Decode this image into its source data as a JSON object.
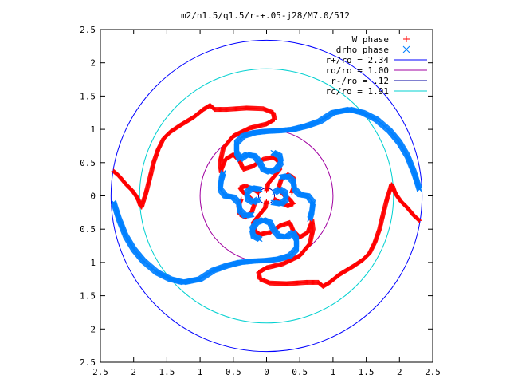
{
  "chart_data": {
    "type": "scatter",
    "title": "m2/n1.5/q1.5/r-+.05-j28/M7.0/512",
    "xlabel": "",
    "ylabel": "",
    "xlim": [
      -2.5,
      2.5
    ],
    "ylim": [
      -2.5,
      2.5
    ],
    "x_ticks": [
      {
        "value": -2.5,
        "label": "2.5"
      },
      {
        "value": -2,
        "label": "2"
      },
      {
        "value": -1.5,
        "label": "1.5"
      },
      {
        "value": -1,
        "label": "1"
      },
      {
        "value": -0.5,
        "label": "0.5"
      },
      {
        "value": 0,
        "label": "0"
      },
      {
        "value": 0.5,
        "label": "0.5"
      },
      {
        "value": 1,
        "label": "1"
      },
      {
        "value": 1.5,
        "label": "1.5"
      },
      {
        "value": 2,
        "label": "2"
      },
      {
        "value": 2.5,
        "label": "2.5"
      }
    ],
    "y_ticks": [
      {
        "value": 2.5,
        "label": "2.5"
      },
      {
        "value": 2,
        "label": "2"
      },
      {
        "value": 1.5,
        "label": "1.5"
      },
      {
        "value": 1,
        "label": "1"
      },
      {
        "value": 0.5,
        "label": "0.5"
      },
      {
        "value": 0,
        "label": "0"
      },
      {
        "value": -0.5,
        "label": "0.5"
      },
      {
        "value": -1,
        "label": "1"
      },
      {
        "value": -1.5,
        "label": "1.5"
      },
      {
        "value": -2,
        "label": "2"
      },
      {
        "value": -2.5,
        "label": "2.5"
      }
    ],
    "grid": false,
    "legend_position": "top-right",
    "series": [
      {
        "name": "W phase",
        "marker": "plus",
        "color": "#ff0000",
        "arms": [
          [
            [
              2.3,
              -0.37
            ],
            [
              2.22,
              -0.3
            ],
            [
              2.12,
              -0.18
            ],
            [
              2.02,
              -0.08
            ],
            [
              1.95,
              0.02
            ],
            [
              1.92,
              0.08
            ],
            [
              1.9,
              0.14
            ],
            [
              1.88,
              0.17
            ],
            [
              1.86,
              0.1
            ],
            [
              1.82,
              -0.02
            ],
            [
              1.76,
              -0.25
            ],
            [
              1.7,
              -0.5
            ],
            [
              1.63,
              -0.7
            ],
            [
              1.55,
              -0.86
            ],
            [
              1.45,
              -0.96
            ],
            [
              1.3,
              -1.06
            ],
            [
              1.1,
              -1.18
            ],
            [
              0.95,
              -1.3
            ],
            [
              0.85,
              -1.36
            ],
            [
              0.78,
              -1.3
            ],
            [
              0.6,
              -1.3
            ],
            [
              0.3,
              -1.32
            ],
            [
              0.05,
              -1.31
            ],
            [
              -0.1,
              -1.25
            ],
            [
              -0.12,
              -1.15
            ],
            [
              0.0,
              -1.08
            ],
            [
              0.25,
              -1.02
            ],
            [
              0.5,
              -0.9
            ],
            [
              0.65,
              -0.72
            ],
            [
              0.7,
              -0.5
            ],
            [
              0.68,
              -0.35
            ]
          ],
          [
            [
              -2.3,
              0.37
            ],
            [
              -2.22,
              0.3
            ],
            [
              -2.12,
              0.18
            ],
            [
              -2.02,
              0.08
            ],
            [
              -1.95,
              -0.02
            ],
            [
              -1.92,
              -0.08
            ],
            [
              -1.9,
              -0.14
            ],
            [
              -1.88,
              -0.17
            ],
            [
              -1.86,
              -0.1
            ],
            [
              -1.82,
              0.02
            ],
            [
              -1.76,
              0.25
            ],
            [
              -1.7,
              0.5
            ],
            [
              -1.63,
              0.7
            ],
            [
              -1.55,
              0.86
            ],
            [
              -1.45,
              0.96
            ],
            [
              -1.3,
              1.06
            ],
            [
              -1.1,
              1.18
            ],
            [
              -0.95,
              1.3
            ],
            [
              -0.85,
              1.36
            ],
            [
              -0.78,
              1.3
            ],
            [
              -0.6,
              1.3
            ],
            [
              -0.3,
              1.32
            ],
            [
              -0.05,
              1.31
            ],
            [
              0.1,
              1.25
            ],
            [
              0.12,
              1.15
            ],
            [
              0.0,
              1.08
            ],
            [
              -0.25,
              1.02
            ],
            [
              -0.5,
              0.9
            ],
            [
              -0.65,
              0.72
            ],
            [
              -0.7,
              0.5
            ],
            [
              -0.68,
              0.35
            ]
          ],
          [
            [
              -0.68,
              0.4
            ],
            [
              -0.62,
              0.55
            ],
            [
              -0.5,
              0.62
            ],
            [
              -0.4,
              0.52
            ],
            [
              -0.35,
              0.4
            ],
            [
              -0.2,
              0.45
            ],
            [
              -0.05,
              0.55
            ],
            [
              0.1,
              0.58
            ],
            [
              0.18,
              0.52
            ],
            [
              0.2,
              0.4
            ],
            [
              0.12,
              0.3
            ],
            [
              0.02,
              0.18
            ],
            [
              0.0,
              0.08
            ]
          ],
          [
            [
              0.68,
              -0.4
            ],
            [
              0.62,
              -0.55
            ],
            [
              0.5,
              -0.62
            ],
            [
              0.4,
              -0.52
            ],
            [
              0.35,
              -0.4
            ],
            [
              0.2,
              -0.45
            ],
            [
              0.05,
              -0.55
            ],
            [
              -0.1,
              -0.58
            ],
            [
              -0.18,
              -0.52
            ],
            [
              -0.2,
              -0.4
            ],
            [
              -0.12,
              -0.3
            ],
            [
              -0.02,
              -0.18
            ],
            [
              0.0,
              -0.08
            ]
          ],
          [
            [
              -0.38,
              -0.05
            ],
            [
              -0.42,
              -0.15
            ],
            [
              -0.4,
              -0.28
            ],
            [
              -0.32,
              -0.32
            ],
            [
              -0.22,
              -0.24
            ],
            [
              -0.18,
              -0.12
            ],
            [
              -0.25,
              -0.02
            ],
            [
              -0.35,
              0.05
            ],
            [
              -0.4,
              0.12
            ],
            [
              -0.32,
              0.15
            ],
            [
              -0.2,
              0.1
            ],
            [
              -0.12,
              0.05
            ]
          ],
          [
            [
              0.38,
              0.05
            ],
            [
              0.42,
              0.15
            ],
            [
              0.4,
              0.28
            ],
            [
              0.32,
              0.32
            ],
            [
              0.22,
              0.24
            ],
            [
              0.18,
              0.12
            ],
            [
              0.25,
              0.02
            ],
            [
              0.35,
              -0.05
            ],
            [
              0.4,
              -0.12
            ],
            [
              0.32,
              -0.15
            ],
            [
              0.2,
              -0.1
            ],
            [
              0.12,
              -0.05
            ]
          ]
        ]
      },
      {
        "name": "drho phase",
        "marker": "cross",
        "color": "#0080ff",
        "arms": [
          [
            [
              2.3,
              0.1
            ],
            [
              2.22,
              0.35
            ],
            [
              2.12,
              0.6
            ],
            [
              2.0,
              0.8
            ],
            [
              1.85,
              0.98
            ],
            [
              1.65,
              1.15
            ],
            [
              1.45,
              1.25
            ],
            [
              1.25,
              1.3
            ],
            [
              1.0,
              1.25
            ],
            [
              0.8,
              1.12
            ],
            [
              0.6,
              1.05
            ],
            [
              0.4,
              1.0
            ],
            [
              0.2,
              0.98
            ],
            [
              0.0,
              0.97
            ],
            [
              -0.18,
              0.95
            ],
            [
              -0.35,
              0.9
            ],
            [
              -0.45,
              0.8
            ],
            [
              -0.45,
              0.65
            ],
            [
              -0.4,
              0.55
            ]
          ],
          [
            [
              -2.3,
              -0.1
            ],
            [
              -2.22,
              -0.35
            ],
            [
              -2.12,
              -0.6
            ],
            [
              -2.0,
              -0.8
            ],
            [
              -1.85,
              -0.98
            ],
            [
              -1.65,
              -1.15
            ],
            [
              -1.45,
              -1.25
            ],
            [
              -1.25,
              -1.3
            ],
            [
              -1.0,
              -1.25
            ],
            [
              -0.8,
              -1.12
            ],
            [
              -0.6,
              -1.05
            ],
            [
              -0.4,
              -1.0
            ],
            [
              -0.2,
              -0.98
            ],
            [
              0.0,
              -0.97
            ],
            [
              0.18,
              -0.95
            ],
            [
              0.35,
              -0.9
            ],
            [
              0.45,
              -0.8
            ],
            [
              0.45,
              -0.65
            ],
            [
              0.4,
              -0.55
            ]
          ],
          [
            [
              -0.4,
              0.55
            ],
            [
              -0.3,
              0.62
            ],
            [
              -0.18,
              0.6
            ],
            [
              -0.1,
              0.5
            ],
            [
              -0.05,
              0.4
            ],
            [
              0.05,
              0.36
            ],
            [
              0.15,
              0.4
            ],
            [
              0.22,
              0.5
            ],
            [
              0.2,
              0.6
            ],
            [
              0.1,
              0.65
            ]
          ],
          [
            [
              0.4,
              -0.55
            ],
            [
              0.3,
              -0.62
            ],
            [
              0.18,
              -0.6
            ],
            [
              0.1,
              -0.5
            ],
            [
              0.05,
              -0.4
            ],
            [
              -0.05,
              -0.36
            ],
            [
              -0.15,
              -0.4
            ],
            [
              -0.22,
              -0.5
            ],
            [
              -0.2,
              -0.6
            ],
            [
              -0.1,
              -0.65
            ]
          ],
          [
            [
              0.65,
              -0.35
            ],
            [
              0.68,
              -0.25
            ],
            [
              0.7,
              -0.1
            ],
            [
              0.62,
              0.0
            ],
            [
              0.5,
              0.02
            ],
            [
              0.42,
              0.1
            ],
            [
              0.4,
              0.22
            ],
            [
              0.32,
              0.3
            ],
            [
              0.22,
              0.28
            ]
          ],
          [
            [
              -0.65,
              0.35
            ],
            [
              -0.68,
              0.25
            ],
            [
              -0.7,
              0.1
            ],
            [
              -0.62,
              0.0
            ],
            [
              -0.5,
              -0.02
            ],
            [
              -0.42,
              -0.1
            ],
            [
              -0.4,
              -0.22
            ],
            [
              -0.32,
              -0.3
            ],
            [
              -0.22,
              -0.28
            ]
          ],
          [
            [
              0.12,
              0.05
            ],
            [
              0.2,
              0.1
            ],
            [
              0.28,
              0.05
            ],
            [
              0.3,
              -0.05
            ],
            [
              0.22,
              -0.12
            ],
            [
              0.1,
              -0.1
            ]
          ],
          [
            [
              -0.12,
              -0.05
            ],
            [
              -0.2,
              -0.1
            ],
            [
              -0.28,
              -0.05
            ],
            [
              -0.3,
              0.05
            ],
            [
              -0.22,
              0.12
            ],
            [
              -0.1,
              0.1
            ]
          ]
        ]
      },
      {
        "name": "r+/ro = 2.34",
        "type": "circle",
        "radius": 2.34,
        "color": "#0000ff"
      },
      {
        "name": "ro/ro = 1.00",
        "type": "circle",
        "radius": 1.0,
        "color": "#a000a0"
      },
      {
        "name": "r-/ro = .12",
        "type": "circle",
        "radius": 0.12,
        "color": "#0000a0"
      },
      {
        "name": "rc/ro = 1.91",
        "type": "circle",
        "radius": 1.91,
        "color": "#00d0d0"
      }
    ]
  }
}
